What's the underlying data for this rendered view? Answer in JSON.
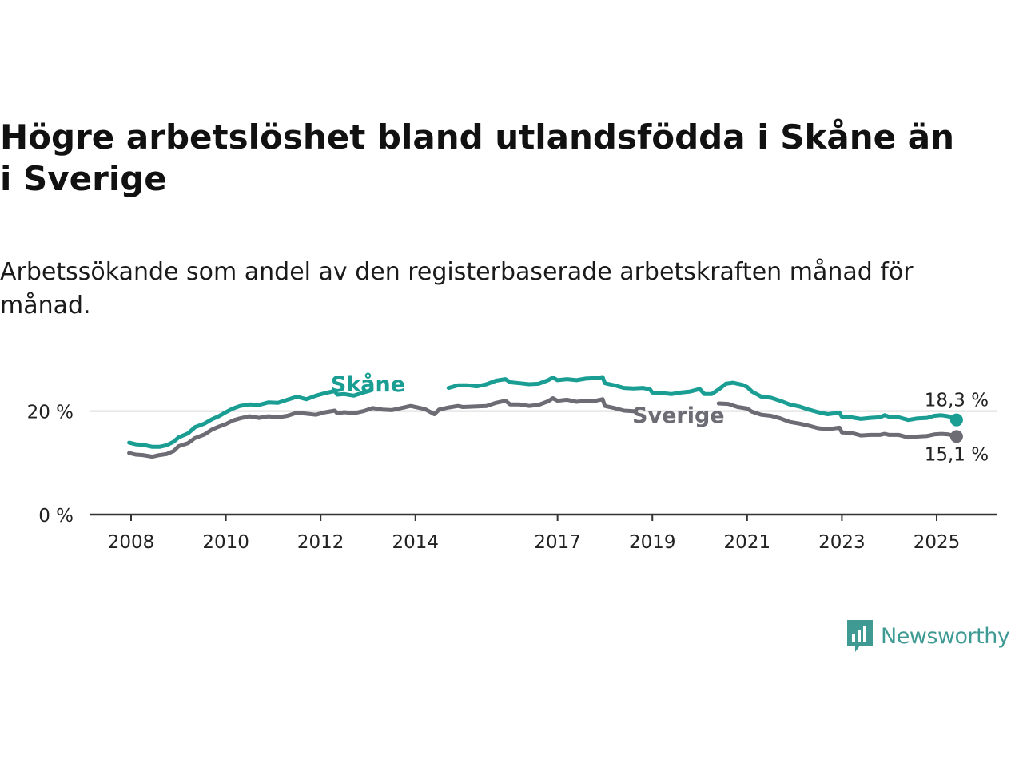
{
  "header": {
    "title": "Högre arbetslöshet bland utlandsfödda i Skåne än i Sverige",
    "subtitle": "Arbetssökande som andel av den registerbaserade arbetskraften månad för månad."
  },
  "brand": {
    "name": "Newsworthy",
    "color": "#3f9a94"
  },
  "chart_data": {
    "type": "line",
    "title": "Högre arbetslöshet bland utlandsfödda i Skåne än i Sverige",
    "subtitle": "Arbetssökande som andel av den registerbaserade arbetskraften månad för månad.",
    "xlabel": "",
    "ylabel": "",
    "xlim": [
      2007.85,
      2026.25
    ],
    "ylim": [
      0,
      30
    ],
    "grid": true,
    "legend": "inline labels on lines",
    "y_ticks": [
      {
        "value": 0,
        "label": "0 %"
      },
      {
        "value": 20,
        "label": "20 %"
      }
    ],
    "x_ticks": [
      {
        "value": 2008.0,
        "label": "2008"
      },
      {
        "value": 2010.0,
        "label": "2010"
      },
      {
        "value": 2012.0,
        "label": "2012"
      },
      {
        "value": 2014.0,
        "label": "2014"
      },
      {
        "value": 2017.0,
        "label": "2017"
      },
      {
        "value": 2019.0,
        "label": "2019"
      },
      {
        "value": 2021.0,
        "label": "2021"
      },
      {
        "value": 2023.0,
        "label": "2023"
      },
      {
        "value": 2025.0,
        "label": "2025"
      }
    ],
    "series": [
      {
        "name": "Skåne",
        "color": "#1a9e93",
        "label_anchor": [
          2013.0,
          25.2
        ],
        "gap": [
          2013.05,
          2014.7
        ],
        "end_label": "18,3 %",
        "points": [
          [
            2007.96,
            13.9
          ],
          [
            2008.1,
            13.6
          ],
          [
            2008.25,
            13.5
          ],
          [
            2008.45,
            13.1
          ],
          [
            2008.6,
            13.1
          ],
          [
            2008.75,
            13.4
          ],
          [
            2008.9,
            14.1
          ],
          [
            2009.0,
            14.9
          ],
          [
            2009.2,
            15.7
          ],
          [
            2009.35,
            16.9
          ],
          [
            2009.55,
            17.6
          ],
          [
            2009.7,
            18.4
          ],
          [
            2009.85,
            19.0
          ],
          [
            2010.0,
            19.8
          ],
          [
            2010.15,
            20.5
          ],
          [
            2010.3,
            21.0
          ],
          [
            2010.5,
            21.3
          ],
          [
            2010.7,
            21.2
          ],
          [
            2010.9,
            21.7
          ],
          [
            2011.1,
            21.6
          ],
          [
            2011.3,
            22.2
          ],
          [
            2011.5,
            22.8
          ],
          [
            2011.7,
            22.3
          ],
          [
            2011.9,
            23.0
          ],
          [
            2012.1,
            23.5
          ],
          [
            2012.3,
            23.9
          ],
          [
            2012.35,
            23.2
          ],
          [
            2012.5,
            23.3
          ],
          [
            2012.7,
            23.0
          ],
          [
            2012.9,
            23.6
          ],
          [
            2013.05,
            24.0
          ],
          [
            2014.7,
            24.5
          ],
          [
            2014.9,
            25.0
          ],
          [
            2015.1,
            25.0
          ],
          [
            2015.3,
            24.8
          ],
          [
            2015.5,
            25.2
          ],
          [
            2015.7,
            25.9
          ],
          [
            2015.9,
            26.2
          ],
          [
            2016.0,
            25.6
          ],
          [
            2016.2,
            25.4
          ],
          [
            2016.4,
            25.2
          ],
          [
            2016.6,
            25.3
          ],
          [
            2016.8,
            26.0
          ],
          [
            2016.9,
            26.5
          ],
          [
            2017.0,
            26.0
          ],
          [
            2017.2,
            26.2
          ],
          [
            2017.4,
            26.0
          ],
          [
            2017.6,
            26.3
          ],
          [
            2017.8,
            26.4
          ],
          [
            2017.95,
            26.6
          ],
          [
            2018.0,
            25.4
          ],
          [
            2018.2,
            25.0
          ],
          [
            2018.4,
            24.5
          ],
          [
            2018.6,
            24.4
          ],
          [
            2018.8,
            24.5
          ],
          [
            2018.95,
            24.2
          ],
          [
            2019.0,
            23.6
          ],
          [
            2019.2,
            23.5
          ],
          [
            2019.4,
            23.3
          ],
          [
            2019.6,
            23.6
          ],
          [
            2019.8,
            23.8
          ],
          [
            2020.0,
            24.3
          ],
          [
            2020.1,
            23.3
          ],
          [
            2020.25,
            23.3
          ],
          [
            2020.4,
            24.2
          ],
          [
            2020.55,
            25.3
          ],
          [
            2020.7,
            25.5
          ],
          [
            2020.9,
            25.1
          ],
          [
            2021.0,
            24.7
          ],
          [
            2021.1,
            23.8
          ],
          [
            2021.3,
            22.8
          ],
          [
            2021.5,
            22.6
          ],
          [
            2021.7,
            22.0
          ],
          [
            2021.9,
            21.3
          ],
          [
            2022.1,
            20.9
          ],
          [
            2022.3,
            20.3
          ],
          [
            2022.5,
            19.8
          ],
          [
            2022.7,
            19.4
          ],
          [
            2022.95,
            19.7
          ],
          [
            2023.0,
            18.9
          ],
          [
            2023.2,
            18.8
          ],
          [
            2023.4,
            18.5
          ],
          [
            2023.6,
            18.7
          ],
          [
            2023.8,
            18.8
          ],
          [
            2023.9,
            19.2
          ],
          [
            2024.0,
            18.9
          ],
          [
            2024.2,
            18.8
          ],
          [
            2024.4,
            18.3
          ],
          [
            2024.6,
            18.6
          ],
          [
            2024.8,
            18.7
          ],
          [
            2024.95,
            19.1
          ],
          [
            2025.1,
            19.2
          ],
          [
            2025.25,
            19.0
          ],
          [
            2025.42,
            18.3
          ]
        ]
      },
      {
        "name": "Sverige",
        "color": "#6d6b73",
        "label_anchor": [
          2019.55,
          19.2
        ],
        "gap": [
          2018.65,
          2020.4
        ],
        "end_label": "15,1 %",
        "points": [
          [
            2007.96,
            11.9
          ],
          [
            2008.1,
            11.6
          ],
          [
            2008.25,
            11.5
          ],
          [
            2008.45,
            11.2
          ],
          [
            2008.6,
            11.5
          ],
          [
            2008.75,
            11.7
          ],
          [
            2008.9,
            12.3
          ],
          [
            2009.0,
            13.2
          ],
          [
            2009.2,
            13.8
          ],
          [
            2009.35,
            14.8
          ],
          [
            2009.55,
            15.5
          ],
          [
            2009.7,
            16.4
          ],
          [
            2009.85,
            17.0
          ],
          [
            2010.0,
            17.5
          ],
          [
            2010.15,
            18.2
          ],
          [
            2010.3,
            18.6
          ],
          [
            2010.5,
            19.0
          ],
          [
            2010.7,
            18.7
          ],
          [
            2010.9,
            19.0
          ],
          [
            2011.1,
            18.8
          ],
          [
            2011.3,
            19.1
          ],
          [
            2011.5,
            19.7
          ],
          [
            2011.7,
            19.5
          ],
          [
            2011.9,
            19.3
          ],
          [
            2012.1,
            19.8
          ],
          [
            2012.3,
            20.1
          ],
          [
            2012.35,
            19.6
          ],
          [
            2012.5,
            19.8
          ],
          [
            2012.7,
            19.6
          ],
          [
            2012.9,
            20.0
          ],
          [
            2013.1,
            20.6
          ],
          [
            2013.3,
            20.3
          ],
          [
            2013.5,
            20.2
          ],
          [
            2013.7,
            20.6
          ],
          [
            2013.9,
            21.0
          ],
          [
            2014.0,
            20.8
          ],
          [
            2014.2,
            20.4
          ],
          [
            2014.4,
            19.4
          ],
          [
            2014.5,
            20.3
          ],
          [
            2014.7,
            20.7
          ],
          [
            2014.9,
            21.0
          ],
          [
            2015.0,
            20.8
          ],
          [
            2015.3,
            20.9
          ],
          [
            2015.5,
            21.0
          ],
          [
            2015.7,
            21.6
          ],
          [
            2015.9,
            22.0
          ],
          [
            2016.0,
            21.3
          ],
          [
            2016.2,
            21.3
          ],
          [
            2016.4,
            21.0
          ],
          [
            2016.6,
            21.2
          ],
          [
            2016.8,
            21.9
          ],
          [
            2016.9,
            22.5
          ],
          [
            2017.0,
            22.0
          ],
          [
            2017.2,
            22.2
          ],
          [
            2017.4,
            21.8
          ],
          [
            2017.6,
            22.0
          ],
          [
            2017.8,
            22.0
          ],
          [
            2017.95,
            22.3
          ],
          [
            2018.0,
            21.0
          ],
          [
            2018.2,
            20.6
          ],
          [
            2018.4,
            20.1
          ],
          [
            2018.6,
            20.0
          ],
          [
            2018.65,
            19.9
          ],
          [
            2020.4,
            21.5
          ],
          [
            2020.6,
            21.4
          ],
          [
            2020.8,
            20.8
          ],
          [
            2021.0,
            20.5
          ],
          [
            2021.1,
            19.9
          ],
          [
            2021.3,
            19.3
          ],
          [
            2021.5,
            19.1
          ],
          [
            2021.7,
            18.6
          ],
          [
            2021.9,
            17.9
          ],
          [
            2022.1,
            17.6
          ],
          [
            2022.3,
            17.2
          ],
          [
            2022.5,
            16.7
          ],
          [
            2022.7,
            16.5
          ],
          [
            2022.95,
            16.8
          ],
          [
            2023.0,
            15.9
          ],
          [
            2023.2,
            15.8
          ],
          [
            2023.4,
            15.3
          ],
          [
            2023.6,
            15.4
          ],
          [
            2023.8,
            15.4
          ],
          [
            2023.9,
            15.6
          ],
          [
            2024.0,
            15.4
          ],
          [
            2024.2,
            15.4
          ],
          [
            2024.4,
            14.9
          ],
          [
            2024.6,
            15.1
          ],
          [
            2024.8,
            15.2
          ],
          [
            2024.95,
            15.5
          ],
          [
            2025.1,
            15.6
          ],
          [
            2025.25,
            15.5
          ],
          [
            2025.42,
            15.1
          ]
        ]
      }
    ]
  }
}
